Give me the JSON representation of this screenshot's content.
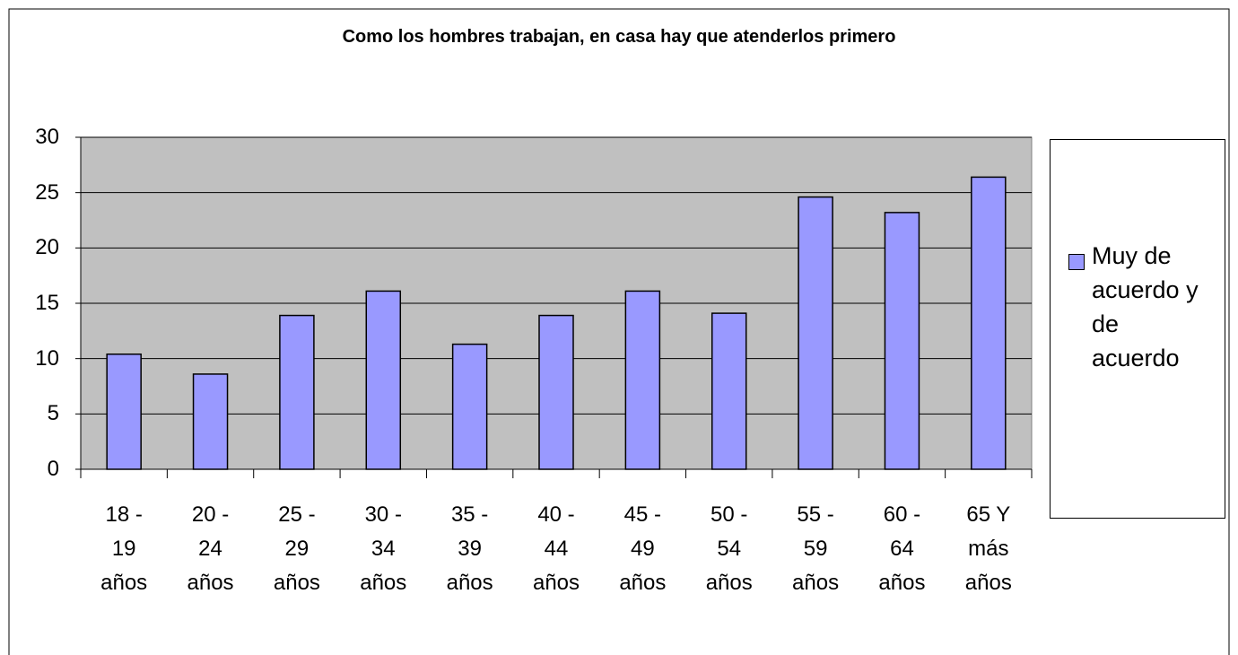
{
  "chart_data": {
    "type": "bar",
    "title": "Como los hombres trabajan, en casa hay que atenderlos primero",
    "categories": [
      "18 - 19 años",
      "20 - 24 años",
      "25 - 29 años",
      "30 - 34 años",
      "35 - 39 años",
      "40 - 44 años",
      "45 - 49 años",
      "50 - 54 años",
      "55 - 59 años",
      "60 - 64 años",
      "65 Y más años"
    ],
    "series": [
      {
        "name": "Muy de acuerdo y de acuerdo",
        "color": "#9999ff",
        "values": [
          10.4,
          8.6,
          13.9,
          16.1,
          11.3,
          13.9,
          16.1,
          14.1,
          24.6,
          23.2,
          26.4
        ]
      }
    ],
    "ylim": [
      0,
      30
    ],
    "yticks": [
      0,
      5,
      10,
      15,
      20,
      25,
      30
    ],
    "grid": true,
    "legend": "right"
  }
}
